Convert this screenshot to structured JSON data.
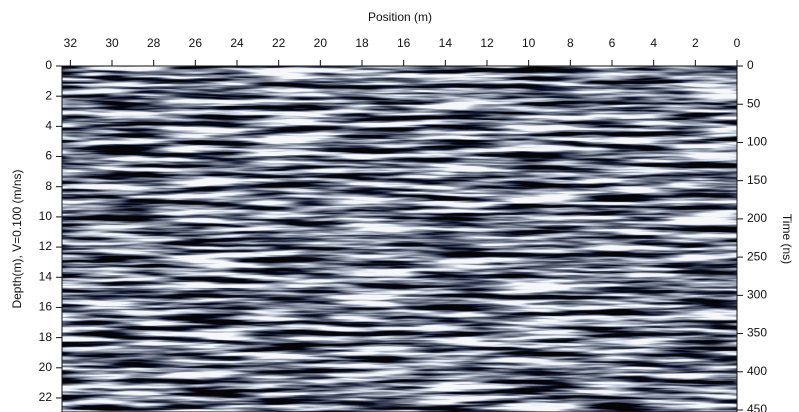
{
  "chart_data": {
    "type": "image",
    "xlabel": "Position (m)",
    "ylabel": "Depth(m), V=0.100 (m/ns)",
    "y2label": "Time (ns)",
    "xlim": [
      32.4,
      0
    ],
    "xticks": [
      32,
      30,
      28,
      26,
      24,
      22,
      20,
      18,
      16,
      14,
      12,
      10,
      8,
      6,
      4,
      2,
      0
    ],
    "ylim": [
      0,
      22.93
    ],
    "yticks": [
      0,
      2,
      4,
      6,
      8,
      10,
      12,
      14,
      16,
      18,
      20,
      22
    ],
    "y2lim": [
      0,
      452.6
    ],
    "y2ticks": [
      0,
      50,
      100,
      150,
      200,
      250,
      300,
      350,
      400,
      450
    ]
  }
}
